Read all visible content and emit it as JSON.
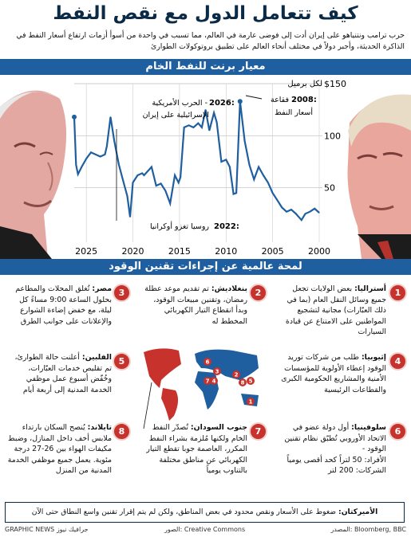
{
  "header": {
    "title": "كيف تتعامل الدول مع نقص النفط",
    "subtitle": "حرب ترامب ونتنياهو على إيران أدت إلى فوضى عارمة في العالم، مما تسبب في واحدة من أسوأ أزمات ارتفاع أسعار النفط في الذاكرة الحديثة، وأجبر دولاً في مختلف أنحاء العالم على تطبيق بروتوكولات الطوارئ"
  },
  "chart_section": {
    "heading": "معيار برنت للنفط الخام",
    "unit_note": "لكل برميل",
    "annotations": {
      "a2026_year": "2026:",
      "a2026_text1": "الحرب الأمريكية -",
      "a2026_text2": "الإسرائيلية على إيران",
      "a2008_year": "2008:",
      "a2008_text1": "فقاعة",
      "a2008_text2": "أسعار النفط",
      "a2022_year": "2022:",
      "a2022_text": "روسيا تغزو أوكرانيا"
    }
  },
  "chart_data": {
    "type": "line",
    "title": "معيار برنت للنفط الخام",
    "ylabel": "لكل برميل",
    "x_direction": "right-to-left",
    "xlim": [
      2000,
      2026.3
    ],
    "ylim": [
      0,
      150
    ],
    "x_ticks": [
      "2025",
      "2020",
      "2015",
      "2010",
      "2005",
      "2000"
    ],
    "x_tick_values": [
      2025,
      2020,
      2015,
      2010,
      2005,
      2000
    ],
    "y_ticks": [
      "$150",
      "100",
      "50"
    ],
    "y_tick_values": [
      150,
      100,
      50
    ],
    "grid": true,
    "series": [
      {
        "color": "#1f5fa0",
        "x": [
          2000,
          2000.5,
          2001,
          2001.5,
          2001.9,
          2002.5,
          2003,
          2003.5,
          2004,
          2004.5,
          2005,
          2005.5,
          2006,
          2006.5,
          2007,
          2007.5,
          2008,
          2008.5,
          2008.9,
          2009.2,
          2009.6,
          2010,
          2010.5,
          2011,
          2011.3,
          2011.8,
          2012.2,
          2012.6,
          2013,
          2013.5,
          2014,
          2014.5,
          2014.9,
          2015.1,
          2015.5,
          2016.0,
          2016.5,
          2017,
          2017.5,
          2018,
          2018.8,
          2019,
          2019.5,
          2020,
          2020.3,
          2020.6,
          2021,
          2021.5,
          2022,
          2022.4,
          2022.8,
          2023,
          2023.5,
          2024,
          2024.5,
          2025,
          2025.5,
          2025.9,
          2026.1,
          2026.3
        ],
        "y": [
          26,
          30,
          27,
          25,
          19,
          25,
          29,
          27,
          31,
          38,
          45,
          55,
          62,
          70,
          58,
          72,
          95,
          133,
          45,
          44,
          70,
          77,
          75,
          113,
          122,
          105,
          125,
          108,
          112,
          108,
          110,
          108,
          60,
          55,
          62,
          35,
          47,
          54,
          52,
          70,
          62,
          64,
          62,
          55,
          22,
          42,
          55,
          72,
          95,
          118,
          90,
          82,
          80,
          82,
          84,
          78,
          70,
          63,
          72,
          118
        ]
      }
    ]
  },
  "panel": {
    "heading": "لمحة عالمية عن إجراءات تقنين الوقود",
    "items": [
      {
        "n": "1",
        "country": "أستراليا:",
        "text": "بعض الولايات تجعل جميع وسائل النقل العام (بما في ذلك العبّارات) مجانية لتشجيع المواطنين على الامتناع عن قيادة السيارات"
      },
      {
        "n": "2",
        "country": "بنغلاديش:",
        "text": "تم تقديم موعد عطلة رمضان، وتقنين مبيعات الوقود، وبدأ انقطاع التيار الكهربائي المخطط له"
      },
      {
        "n": "3",
        "country": "مصر:",
        "text": "تُغلق المحلات والمطاعم بحلول الساعة 9:00 مساءً كل ليلة، مع خفض إضاءة الشوارع والإعلانات على جوانب الطرق"
      },
      {
        "n": "4",
        "country": "إثيوبيا:",
        "text": "طلب من شركات توريد الوقود إعطاء الأولوية للمؤسسات الأمنية والمشاريع الحكومية الكبرى والقطاعات الرئيسية"
      },
      {
        "n": "5",
        "country": "الفلبين:",
        "text": "أعلنت حالة الطوارئ، تم تقليص خدمات العبّارات، وخُفّض أسبوع عمل موظفي الخدمة المدنية إلى أربعة أيام"
      },
      {
        "n": "6",
        "country": "سلوفينيا:",
        "text": "أول دولة عضو في الاتحاد الأوروبي تُطبّق نظام تقنين الوقود -",
        "l1": "الأفراد: 50 لتراً كحد أقصى يومياً",
        "l2": "الشركات: 200 لتر"
      },
      {
        "n": "7",
        "country": "جنوب السودان:",
        "text": "تُصدّر النفط الخام ولكنها مُلزمة بشراء النفط المكرر، العاصمة جوبا تقطع التيار الكهربائي عن مناطق مختلفة بالتناوب يومياً"
      },
      {
        "n": "8",
        "country": "تايلاند:",
        "text": "يُنصح السكان بارتداء ملابس أخف داخل المنازل، وضبط مكيفات الهواء بين 26-27 درجة مئوية. يعمل جميع موظفي الخدمة المدنية من المنزل"
      }
    ]
  },
  "footer": {
    "us_label": "الأميركتان:",
    "us_text": "ضغوط على الأسعار ونقص محدود في بعض المناطق، ولكن لم يتم إقرار تقنين واسع النطاق حتى الآن",
    "source": "المصدر: Bloomberg, BBC",
    "photos": "الصور: Creative Commons",
    "brand": "GRAPHIC NEWS جرافيك نيوز"
  },
  "colors": {
    "accent": "#1f5fa0",
    "marker": "#c8322d",
    "title": "#0b2a45"
  }
}
